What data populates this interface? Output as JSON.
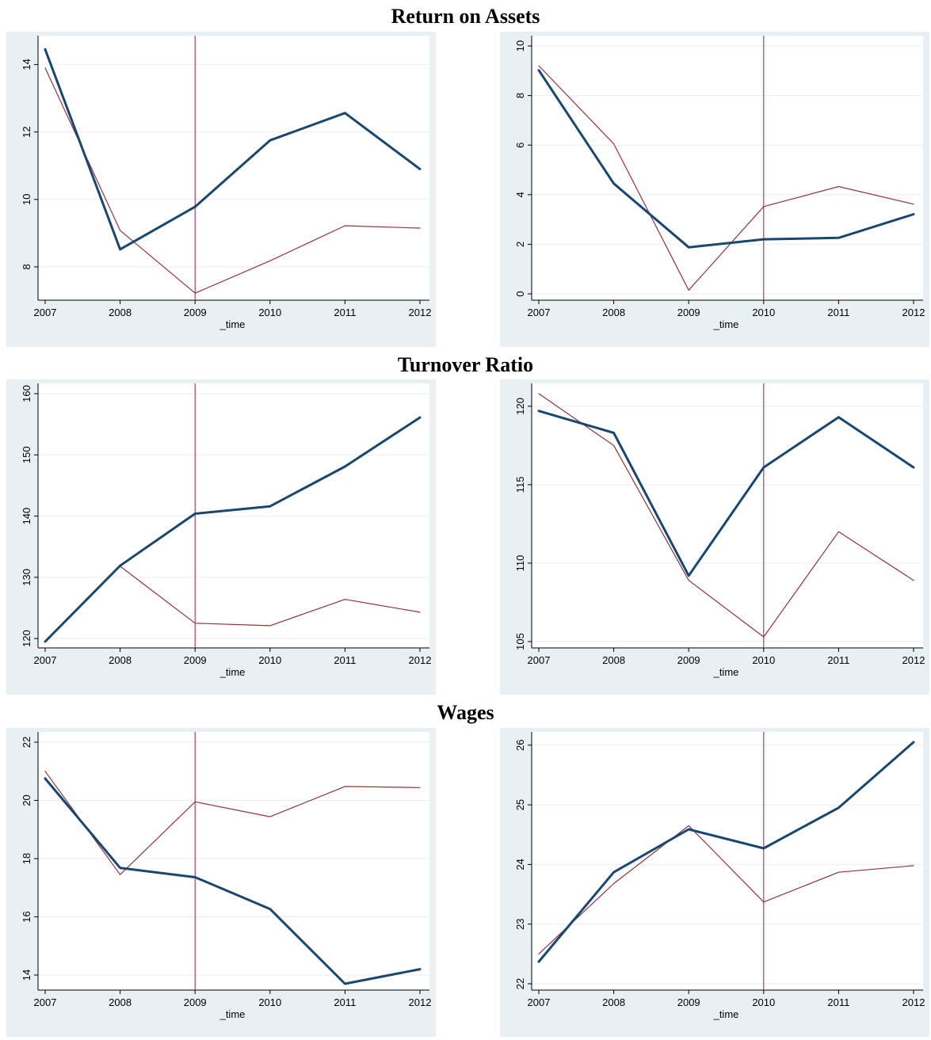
{
  "page": {
    "background": "#ffffff"
  },
  "sections": [
    {
      "title": "Return on Assets"
    },
    {
      "title": "Turnover Ratio"
    },
    {
      "title": "Wages"
    }
  ],
  "colors": {
    "panel_background": "#e9f0f4",
    "plot_background": "#ffffff",
    "gridline": "#e8eef2",
    "treated_series": "#1a476f",
    "comparison_series": "#90353b",
    "reference_line": "#9b1f3d",
    "axis": "#000000"
  },
  "chart_data": [
    {
      "type": "line",
      "section": 0,
      "title": "",
      "xlabel": "_time",
      "ylabel": "",
      "x": [
        2007,
        2008,
        2009,
        2010,
        2011,
        2012
      ],
      "xlim": [
        2007,
        2012
      ],
      "ylim": [
        7.2,
        14.55
      ],
      "yticks": [
        8,
        10,
        12,
        14
      ],
      "vline": 2009,
      "grid": true,
      "legend": "none",
      "series": [
        {
          "role": "treated",
          "values": [
            14.45,
            8.52,
            9.78,
            11.75,
            12.56,
            10.9
          ]
        },
        {
          "role": "comparison",
          "values": [
            13.9,
            9.08,
            7.22,
            8.18,
            9.22,
            9.15
          ]
        }
      ]
    },
    {
      "type": "line",
      "section": 0,
      "title": "",
      "xlabel": "_time",
      "ylabel": "",
      "x": [
        2007,
        2008,
        2009,
        2010,
        2011,
        2012
      ],
      "xlim": [
        2007,
        2012
      ],
      "ylim": [
        0,
        10
      ],
      "yticks": [
        0,
        2,
        4,
        6,
        8,
        10
      ],
      "vline": 2010,
      "grid": true,
      "legend": "none",
      "series": [
        {
          "role": "treated",
          "values": [
            9.02,
            4.45,
            1.88,
            2.2,
            2.26,
            3.21
          ]
        },
        {
          "role": "comparison",
          "values": [
            9.2,
            6.05,
            0.15,
            3.52,
            4.33,
            3.62
          ]
        }
      ]
    },
    {
      "type": "line",
      "section": 1,
      "title": "",
      "xlabel": "_time",
      "ylabel": "",
      "x": [
        2007,
        2008,
        2009,
        2010,
        2011,
        2012
      ],
      "xlim": [
        2007,
        2012
      ],
      "ylim": [
        119.5,
        160
      ],
      "yticks": [
        120,
        130,
        140,
        150,
        160
      ],
      "vline": 2009,
      "grid": true,
      "legend": "none",
      "series": [
        {
          "role": "treated",
          "values": [
            119.5,
            131.9,
            140.4,
            141.6,
            148.1,
            156.1
          ]
        },
        {
          "role": "comparison",
          "values": [
            119.5,
            131.8,
            122.5,
            122.1,
            126.4,
            124.3
          ]
        }
      ]
    },
    {
      "type": "line",
      "section": 1,
      "title": "",
      "xlabel": "_time",
      "ylabel": "",
      "x": [
        2007,
        2008,
        2009,
        2010,
        2011,
        2012
      ],
      "xlim": [
        2007,
        2012
      ],
      "ylim": [
        105,
        120.8
      ],
      "yticks": [
        105,
        110,
        115,
        120
      ],
      "vline": 2010,
      "grid": true,
      "legend": "none",
      "series": [
        {
          "role": "treated",
          "values": [
            119.7,
            118.3,
            109.2,
            116.1,
            119.3,
            116.1
          ]
        },
        {
          "role": "comparison",
          "values": [
            120.8,
            117.5,
            108.9,
            105.3,
            112.0,
            108.9
          ]
        }
      ]
    },
    {
      "type": "line",
      "section": 2,
      "title": "",
      "xlabel": "_time",
      "ylabel": "",
      "x": [
        2007,
        2008,
        2009,
        2010,
        2011,
        2012
      ],
      "xlim": [
        2007,
        2012
      ],
      "ylim": [
        13.7,
        22
      ],
      "yticks": [
        14,
        16,
        18,
        20,
        22
      ],
      "vline": 2009,
      "grid": true,
      "legend": "none",
      "series": [
        {
          "role": "treated",
          "values": [
            20.75,
            17.68,
            17.36,
            16.27,
            13.7,
            14.2
          ]
        },
        {
          "role": "comparison",
          "values": [
            21.0,
            17.45,
            19.95,
            19.44,
            20.48,
            20.44
          ]
        }
      ]
    },
    {
      "type": "line",
      "section": 2,
      "title": "",
      "xlabel": "_time",
      "ylabel": "",
      "x": [
        2007,
        2008,
        2009,
        2010,
        2011,
        2012
      ],
      "xlim": [
        2007,
        2012
      ],
      "ylim": [
        22,
        26.05
      ],
      "yticks": [
        22,
        23,
        24,
        25,
        26
      ],
      "vline": 2010,
      "grid": true,
      "legend": "none",
      "series": [
        {
          "role": "treated",
          "values": [
            22.37,
            23.87,
            24.59,
            24.27,
            24.95,
            26.05
          ]
        },
        {
          "role": "comparison",
          "values": [
            22.5,
            23.68,
            24.65,
            23.37,
            23.87,
            23.98
          ]
        }
      ]
    }
  ]
}
